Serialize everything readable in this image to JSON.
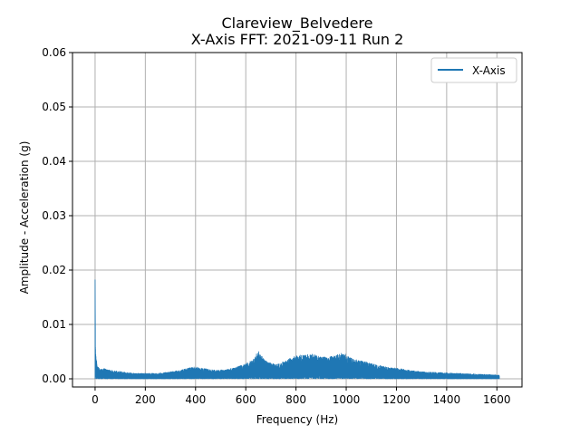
{
  "chart_data": {
    "type": "line",
    "title": "Clareview_Belvedere",
    "subtitle": "X-Axis FFT: 2021-09-11 Run 2",
    "xlabel": "Frequency (Hz)",
    "ylabel": "Amplitude - Acceleration (g)",
    "xlim": [
      -90,
      1700
    ],
    "ylim": [
      -0.0015,
      0.06
    ],
    "xticks": [
      0,
      200,
      400,
      600,
      800,
      1000,
      1200,
      1400,
      1600
    ],
    "xtick_labels": [
      "0",
      "200",
      "400",
      "600",
      "800",
      "1000",
      "1200",
      "1400",
      "1600"
    ],
    "yticks": [
      0.0,
      0.01,
      0.02,
      0.03,
      0.04,
      0.05,
      0.06
    ],
    "ytick_labels": [
      "0.00",
      "0.01",
      "0.02",
      "0.03",
      "0.04",
      "0.05",
      "0.06"
    ],
    "grid": true,
    "legend": {
      "position": "top-right",
      "entries": [
        "X-Axis"
      ]
    },
    "colors": {
      "series": "#1f77b4",
      "grid": "#b0b0b0"
    },
    "series": [
      {
        "name": "X-Axis",
        "x": [
          0,
          2,
          5,
          8,
          12,
          20,
          30,
          50,
          80,
          120,
          160,
          200,
          250,
          300,
          350,
          380,
          400,
          420,
          450,
          480,
          520,
          560,
          600,
          630,
          650,
          660,
          670,
          690,
          720,
          760,
          800,
          830,
          860,
          890,
          920,
          950,
          980,
          1000,
          1020,
          1050,
          1080,
          1110,
          1140,
          1170,
          1200,
          1250,
          1300,
          1350,
          1400,
          1450,
          1500,
          1550,
          1610
        ],
        "y": [
          0.0182,
          0.006,
          0.0035,
          0.003,
          0.0022,
          0.0018,
          0.002,
          0.0017,
          0.0015,
          0.0012,
          0.001,
          0.001,
          0.001,
          0.0013,
          0.0017,
          0.0021,
          0.0022,
          0.002,
          0.0018,
          0.0016,
          0.0017,
          0.0021,
          0.0028,
          0.0035,
          0.0053,
          0.0045,
          0.0037,
          0.003,
          0.0027,
          0.0034,
          0.0043,
          0.0044,
          0.0046,
          0.0042,
          0.004,
          0.0042,
          0.0047,
          0.0045,
          0.0038,
          0.0034,
          0.0031,
          0.0027,
          0.0024,
          0.0021,
          0.002,
          0.0016,
          0.0013,
          0.0012,
          0.0011,
          0.001,
          0.0009,
          0.0008,
          0.0007
        ]
      }
    ]
  }
}
